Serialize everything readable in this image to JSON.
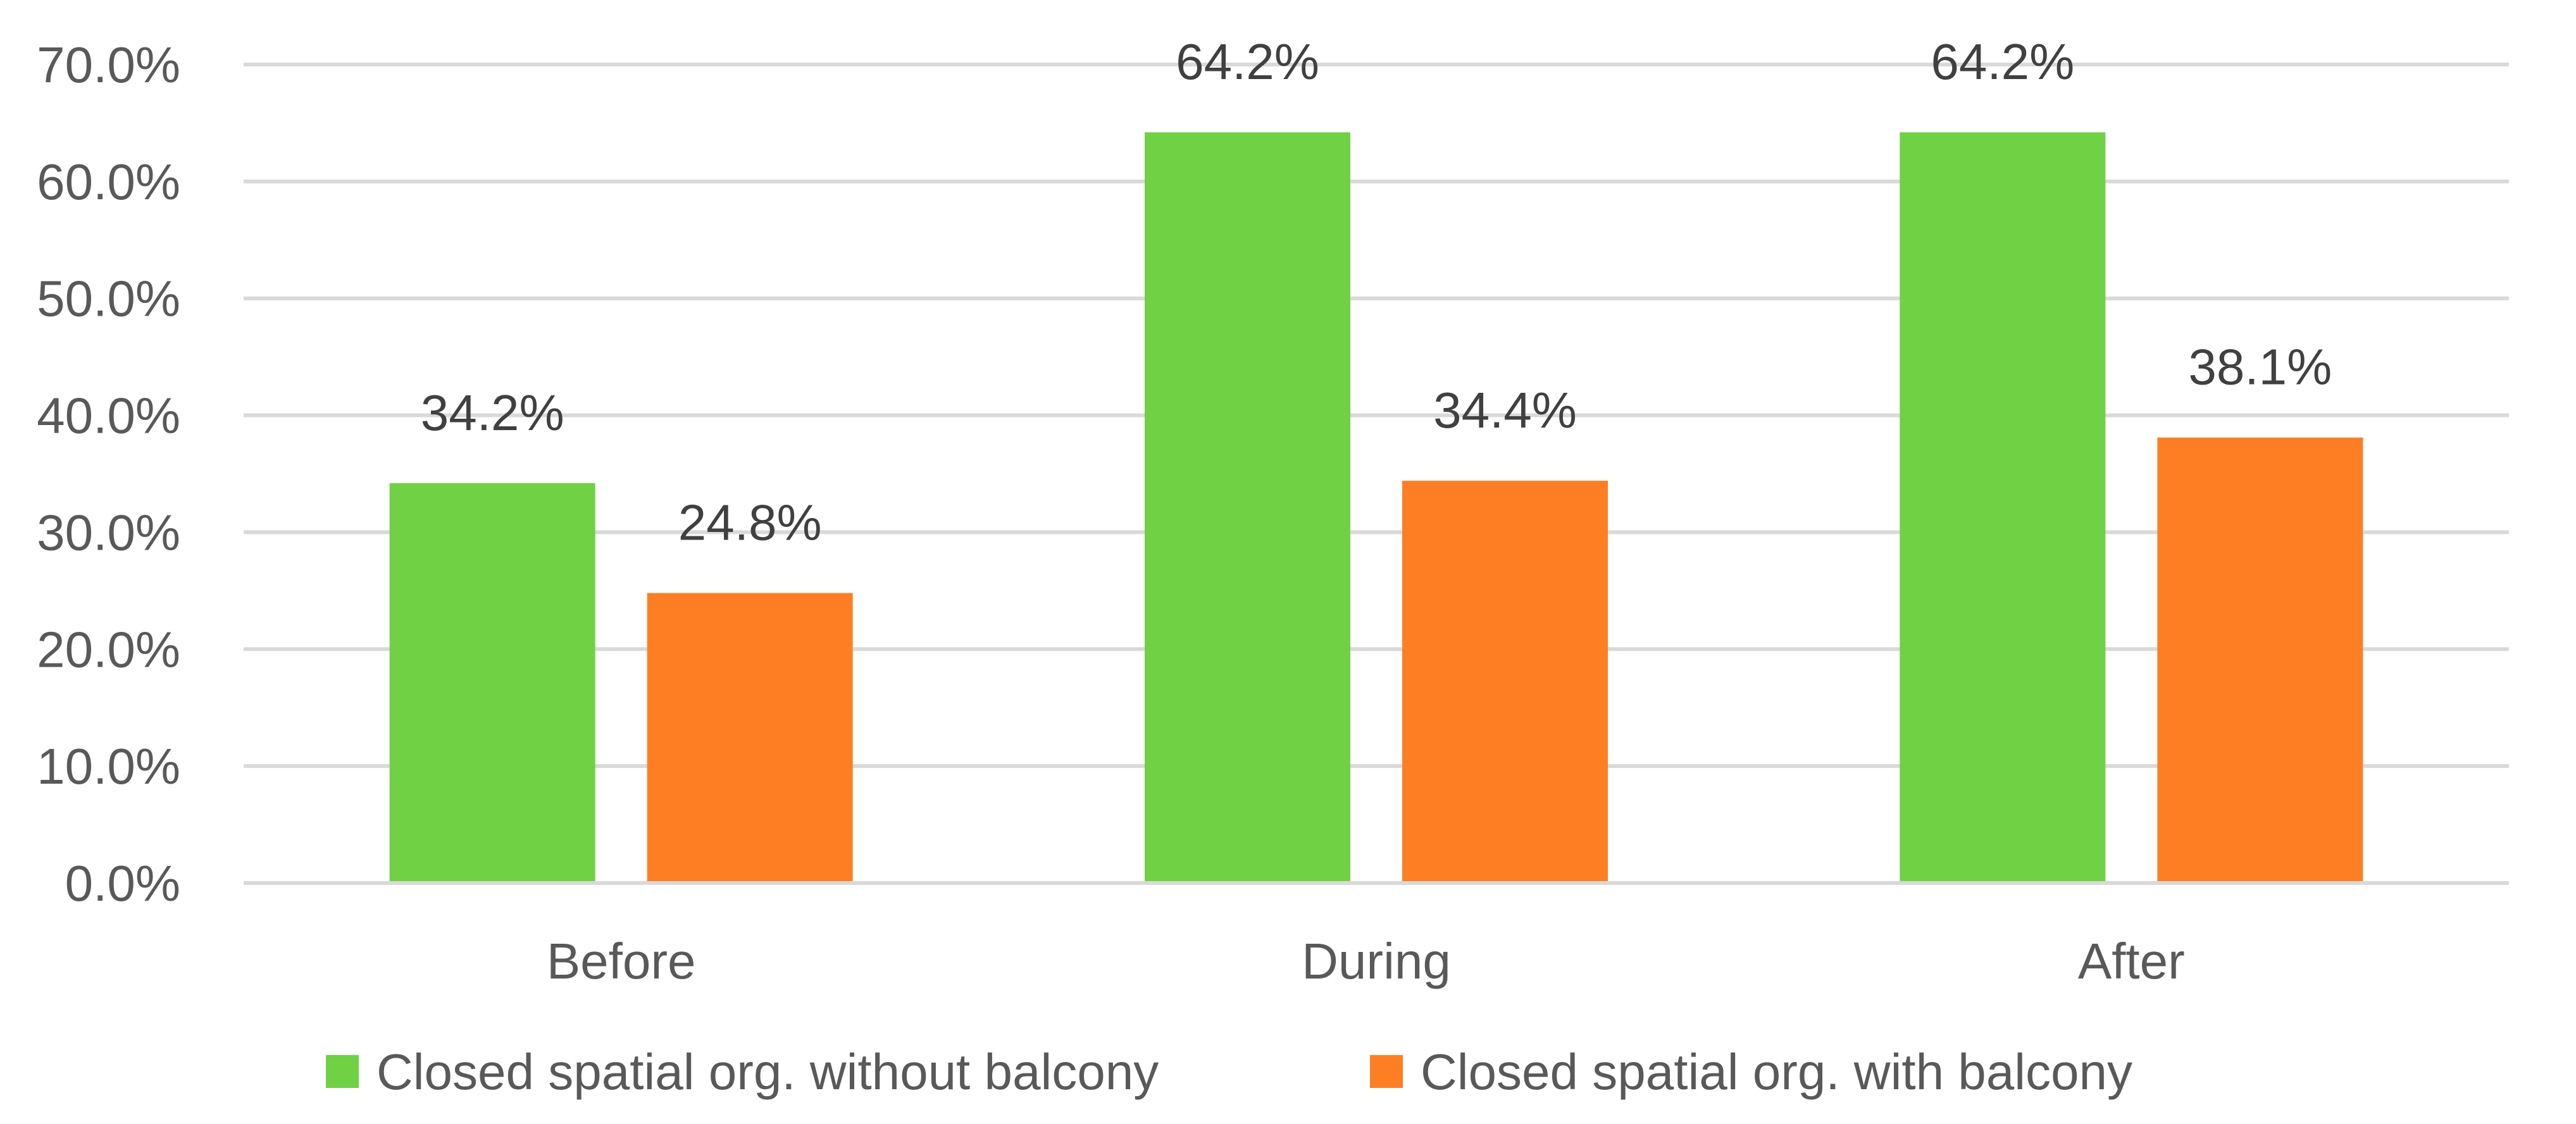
{
  "chart_data": {
    "type": "bar",
    "title": "",
    "xlabel": "",
    "ylabel": "",
    "categories": [
      "Before",
      "During",
      "After"
    ],
    "series": [
      {
        "name": "Closed spatial org. without balcony",
        "color": "#6fd143",
        "values": [
          34.2,
          64.2,
          64.2
        ],
        "labels": [
          "34.2%",
          "64.2%",
          "64.2%"
        ]
      },
      {
        "name": "Closed spatial org. with balcony",
        "color": "#fe7f23",
        "values": [
          24.8,
          34.4,
          38.1
        ],
        "labels": [
          "24.8%",
          "34.4%",
          "38.1%"
        ]
      }
    ],
    "ylim": [
      0,
      70
    ],
    "yticks": [
      0,
      10,
      20,
      30,
      40,
      50,
      60,
      70
    ],
    "ytick_labels": [
      "0.0%",
      "10.0%",
      "20.0%",
      "30.0%",
      "40.0%",
      "50.0%",
      "60.0%",
      "70.0%"
    ],
    "grid": true,
    "legend_position": "bottom"
  }
}
